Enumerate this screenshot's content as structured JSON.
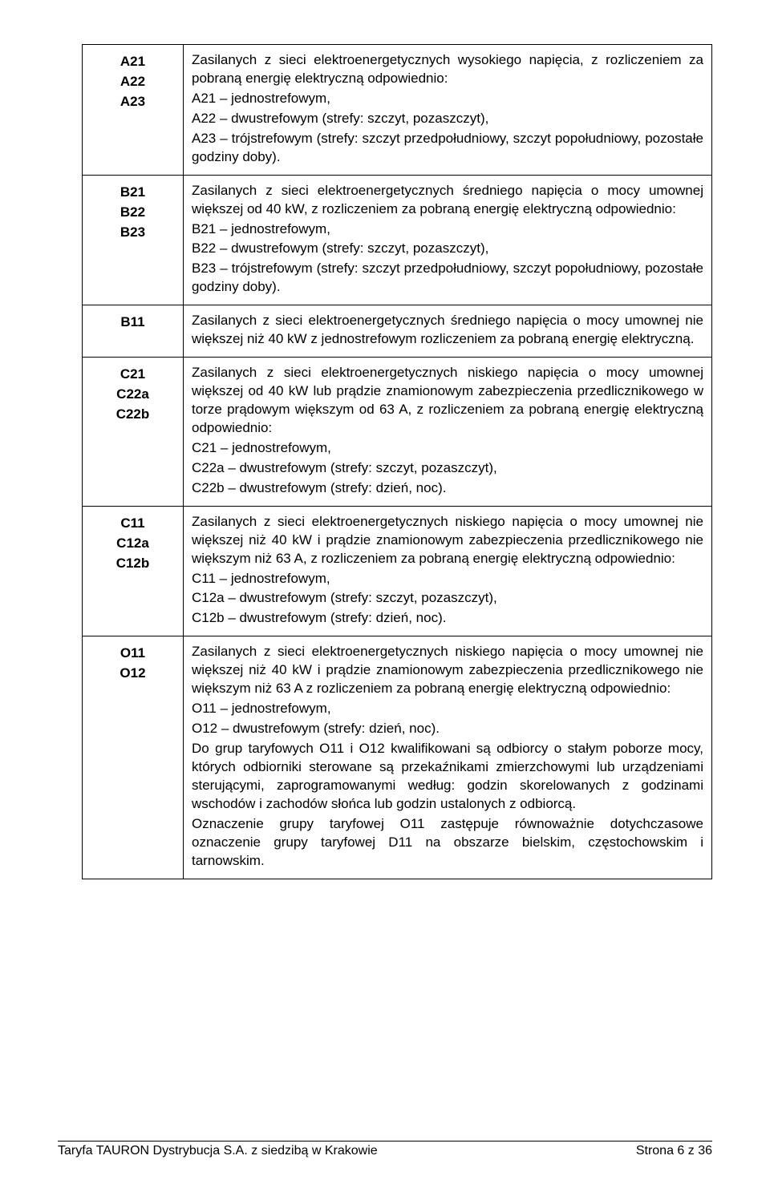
{
  "rows": [
    {
      "labels": [
        "A21",
        "A22",
        "A23"
      ],
      "paras": [
        "Zasilanych z sieci elektroenergetycznych wysokiego napięcia, z rozliczeniem za pobraną energię elektryczną odpowiednio:",
        "A21 – jednostrefowym,",
        "A22 – dwustrefowym (strefy: szczyt, pozaszczyt),",
        "A23 – trójstrefowym (strefy: szczyt przedpołudniowy, szczyt popołudniowy, pozostałe godziny doby)."
      ]
    },
    {
      "labels": [
        "B21",
        "B22",
        "B23"
      ],
      "paras": [
        "Zasilanych z sieci elektroenergetycznych średniego napięcia o mocy umownej większej od 40 kW, z rozliczeniem za pobraną energię elektryczną odpowiednio:",
        "B21 – jednostrefowym,",
        "B22 – dwustrefowym (strefy: szczyt, pozaszczyt),",
        "B23 – trójstrefowym (strefy: szczyt przedpołudniowy, szczyt popołudniowy, pozostałe godziny doby)."
      ]
    },
    {
      "labels": [
        "B11"
      ],
      "paras": [
        "Zasilanych z sieci elektroenergetycznych średniego napięcia o mocy umownej nie większej niż 40 kW z jednostrefowym rozliczeniem za pobraną energię elektryczną."
      ]
    },
    {
      "labels": [
        "C21",
        "C22a",
        "C22b"
      ],
      "paras": [
        "Zasilanych z sieci elektroenergetycznych niskiego napięcia o mocy umownej większej od 40 kW lub prądzie znamionowym zabezpieczenia przedlicznikowego w torze prądowym większym od 63 A, z rozliczeniem za pobraną energię elektryczną odpowiednio:",
        "C21  – jednostrefowym,",
        "C22a – dwustrefowym (strefy: szczyt, pozaszczyt),",
        "C22b – dwustrefowym (strefy: dzień, noc)."
      ]
    },
    {
      "labels": [
        "C11",
        "C12a",
        "C12b"
      ],
      "paras": [
        "Zasilanych z sieci elektroenergetycznych niskiego napięcia o mocy umownej nie większej niż 40 kW i prądzie znamionowym zabezpieczenia przedlicznikowego nie większym niż 63 A, z rozliczeniem za pobraną energię elektryczną odpowiednio:",
        "C11  – jednostrefowym,",
        "C12a – dwustrefowym (strefy: szczyt, pozaszczyt),",
        "C12b – dwustrefowym (strefy: dzień, noc)."
      ]
    },
    {
      "labels": [
        "O11",
        "O12"
      ],
      "paras": [
        "Zasilanych z sieci elektroenergetycznych niskiego napięcia o mocy umownej nie większej niż 40 kW i prądzie znamionowym zabezpieczenia przedlicznikowego nie większym niż 63 A z rozliczeniem za pobraną energię elektryczną odpowiednio:",
        "O11 – jednostrefowym,",
        "O12 – dwustrefowym (strefy: dzień, noc).",
        "Do grup taryfowych O11 i O12 kwalifikowani są odbiorcy o stałym poborze mocy, których odbiorniki sterowane są przekaźnikami zmierzchowymi lub urządzeniami sterującymi, zaprogramowanymi według: godzin skorelowanych z godzinami wschodów i zachodów słońca lub godzin ustalonych z odbiorcą.",
        "Oznaczenie grupy taryfowej O11 zastępuje równoważnie dotychczasowe oznaczenie grupy taryfowej D11 na obszarze bielskim, częstochowskim i tarnowskim."
      ]
    }
  ],
  "footer": {
    "left": "Taryfa TAURON Dystrybucja S.A.  z siedzibą w Krakowie",
    "right": "Strona 6 z 36"
  }
}
